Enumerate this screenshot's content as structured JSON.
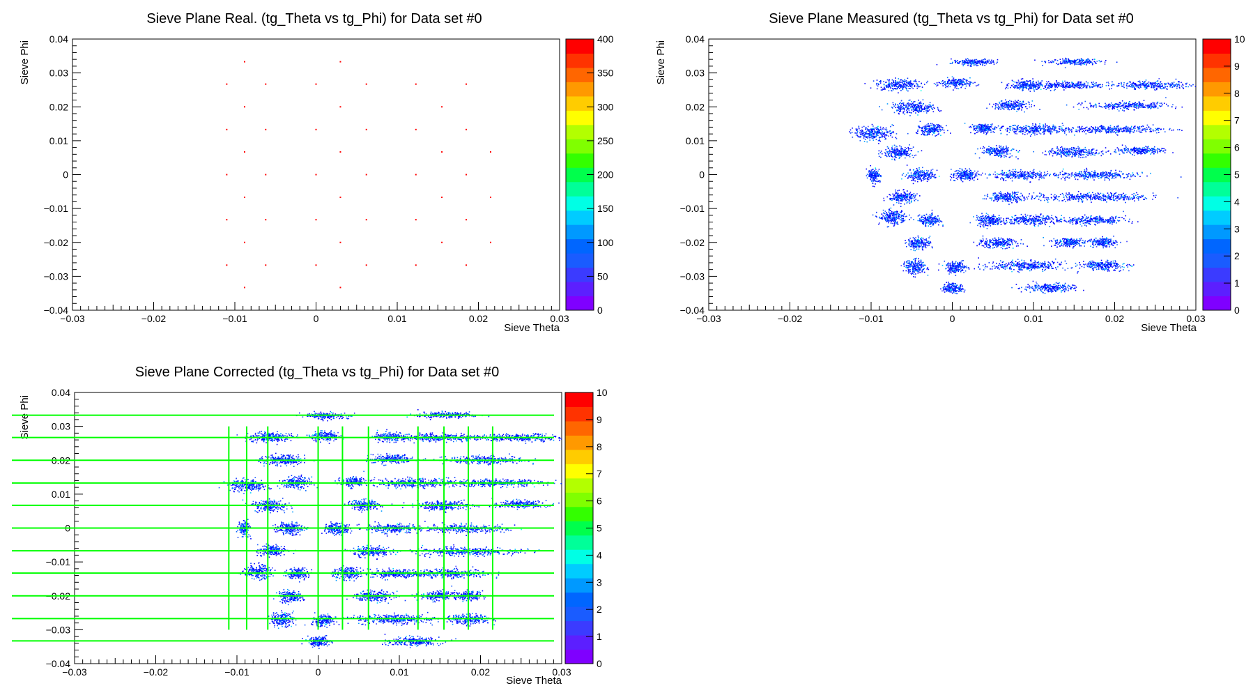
{
  "chart_data": [
    {
      "type": "heatmap",
      "title": "Sieve Plane Real. (tg_Theta vs tg_Phi) for Data set #0",
      "xlabel": "Sieve Theta",
      "ylabel": "Sieve Phi",
      "xlim": [
        -0.03,
        0.03
      ],
      "ylim": [
        -0.04,
        0.04
      ],
      "x_ticks": [
        "−0.03",
        "−0.02",
        "−0.01",
        "0",
        "0.01",
        "0.02",
        "0.03"
      ],
      "y_ticks": [
        "−0.04",
        "−0.03",
        "−0.02",
        "−0.01",
        "0",
        "0.01",
        "0.02",
        "0.03",
        "0.04"
      ],
      "zlim": [
        0,
        400
      ],
      "z_ticks": [
        "0",
        "50",
        "100",
        "150",
        "200",
        "250",
        "300",
        "350",
        "400"
      ],
      "points": [
        [
          -0.0088,
          0.0333
        ],
        [
          0.003,
          0.0333
        ],
        [
          -0.011,
          0.0267
        ],
        [
          -0.0062,
          0.0267
        ],
        [
          0.0,
          0.0267
        ],
        [
          0.0062,
          0.0267
        ],
        [
          0.0123,
          0.0267
        ],
        [
          0.0185,
          0.0267
        ],
        [
          -0.0088,
          0.02
        ],
        [
          0.003,
          0.02
        ],
        [
          0.0155,
          0.02
        ],
        [
          -0.011,
          0.0133
        ],
        [
          -0.0062,
          0.0133
        ],
        [
          0.0,
          0.0133
        ],
        [
          0.0062,
          0.0133
        ],
        [
          0.0123,
          0.0133
        ],
        [
          0.0185,
          0.0133
        ],
        [
          -0.0088,
          0.0067
        ],
        [
          0.003,
          0.0067
        ],
        [
          0.0155,
          0.0067
        ],
        [
          0.0215,
          0.0067
        ],
        [
          -0.011,
          0.0
        ],
        [
          -0.0062,
          0.0
        ],
        [
          0.0,
          0.0
        ],
        [
          0.0062,
          0.0
        ],
        [
          0.0123,
          0.0
        ],
        [
          0.0185,
          0.0
        ],
        [
          -0.0088,
          -0.0067
        ],
        [
          0.003,
          -0.0067
        ],
        [
          0.0155,
          -0.0067
        ],
        [
          0.0215,
          -0.0067
        ],
        [
          -0.011,
          -0.0133
        ],
        [
          -0.0062,
          -0.0133
        ],
        [
          0.0,
          -0.0133
        ],
        [
          0.0062,
          -0.0133
        ],
        [
          0.0123,
          -0.0133
        ],
        [
          0.0185,
          -0.0133
        ],
        [
          -0.0088,
          -0.02
        ],
        [
          0.003,
          -0.02
        ],
        [
          0.0155,
          -0.02
        ],
        [
          0.0215,
          -0.02
        ],
        [
          -0.011,
          -0.0267
        ],
        [
          -0.0062,
          -0.0267
        ],
        [
          0.0,
          -0.0267
        ],
        [
          0.0062,
          -0.0267
        ],
        [
          0.0123,
          -0.0267
        ],
        [
          0.0185,
          -0.0267
        ],
        [
          -0.0088,
          -0.0333
        ],
        [
          0.003,
          -0.0333
        ]
      ]
    },
    {
      "type": "heatmap",
      "title": "Sieve Plane Measured (tg_Theta vs tg_Phi) for Data set #0",
      "xlabel": "Sieve Theta",
      "ylabel": "Sieve Phi",
      "xlim": [
        -0.03,
        0.03
      ],
      "ylim": [
        -0.04,
        0.04
      ],
      "x_ticks": [
        "−0.03",
        "−0.02",
        "−0.01",
        "0",
        "0.01",
        "0.02",
        "0.03"
      ],
      "y_ticks": [
        "−0.04",
        "−0.03",
        "−0.02",
        "−0.01",
        "0",
        "0.01",
        "0.02",
        "0.03",
        "0.04"
      ],
      "zlim": [
        0,
        10
      ],
      "z_ticks": [
        "0",
        "1",
        "2",
        "3",
        "4",
        "5",
        "6",
        "7",
        "8",
        "9",
        "10"
      ],
      "clusters": [
        [
          0.0027,
          0.0333,
          0.0025,
          0.0008
        ],
        [
          0.0148,
          0.0335,
          0.003,
          0.0008
        ],
        [
          -0.0067,
          0.0267,
          0.0025,
          0.0015
        ],
        [
          0.0005,
          0.0272,
          0.0018,
          0.0012
        ],
        [
          0.009,
          0.0265,
          0.0018,
          0.0012
        ],
        [
          0.014,
          0.0265,
          0.0045,
          0.001
        ],
        [
          0.0245,
          0.0265,
          0.0045,
          0.001
        ],
        [
          -0.0048,
          0.02,
          0.0025,
          0.0015
        ],
        [
          0.0072,
          0.0205,
          0.002,
          0.0012
        ],
        [
          0.0215,
          0.0205,
          0.0045,
          0.001
        ],
        [
          -0.0098,
          0.0125,
          0.0022,
          0.0018
        ],
        [
          -0.0028,
          0.0135,
          0.0015,
          0.0015
        ],
        [
          0.0039,
          0.0138,
          0.0013,
          0.0013
        ],
        [
          0.01,
          0.0135,
          0.004,
          0.0012
        ],
        [
          0.02,
          0.0135,
          0.0058,
          0.001
        ],
        [
          -0.0068,
          0.0067,
          0.0018,
          0.0015
        ],
        [
          0.0055,
          0.007,
          0.0018,
          0.0013
        ],
        [
          0.0148,
          0.0068,
          0.003,
          0.0012
        ],
        [
          0.0228,
          0.0072,
          0.0028,
          0.001
        ],
        [
          -0.0097,
          0.0,
          0.0007,
          0.0018
        ],
        [
          -0.004,
          0.0,
          0.0015,
          0.0015
        ],
        [
          0.0015,
          0.0,
          0.0015,
          0.0015
        ],
        [
          0.0085,
          0.0,
          0.003,
          0.0012
        ],
        [
          0.0175,
          0.0,
          0.0045,
          0.0011
        ],
        [
          -0.0062,
          -0.0065,
          0.0015,
          0.0015
        ],
        [
          0.0067,
          -0.0065,
          0.002,
          0.0013
        ],
        [
          0.0175,
          -0.0065,
          0.0065,
          0.0011
        ],
        [
          -0.0074,
          -0.0125,
          0.0015,
          0.0018
        ],
        [
          -0.0028,
          -0.0133,
          0.0012,
          0.0015
        ],
        [
          0.0045,
          -0.0133,
          0.0015,
          0.0015
        ],
        [
          0.0095,
          -0.0133,
          0.003,
          0.0012
        ],
        [
          0.0168,
          -0.0133,
          0.004,
          0.0011
        ],
        [
          -0.0042,
          -0.02,
          0.0013,
          0.0015
        ],
        [
          0.0055,
          -0.02,
          0.0022,
          0.0013
        ],
        [
          0.0145,
          -0.0198,
          0.0018,
          0.0012
        ],
        [
          0.0185,
          -0.0198,
          0.0015,
          0.0012
        ],
        [
          -0.0047,
          -0.027,
          0.0013,
          0.0018
        ],
        [
          0.0003,
          -0.0272,
          0.0012,
          0.0015
        ],
        [
          0.009,
          -0.0267,
          0.0045,
          0.0013
        ],
        [
          0.0185,
          -0.0267,
          0.0025,
          0.0012
        ],
        [
          0.0,
          -0.0333,
          0.0012,
          0.0013
        ],
        [
          0.0118,
          -0.0333,
          0.0028,
          0.0012
        ]
      ]
    },
    {
      "type": "heatmap",
      "title": "Sieve Plane Corrected (tg_Theta vs tg_Phi) for Data set #0",
      "xlabel": "Sieve Theta",
      "ylabel": "Sieve Phi",
      "xlim": [
        -0.03,
        0.03
      ],
      "ylim": [
        -0.04,
        0.04
      ],
      "x_ticks": [
        "−0.03",
        "−0.02",
        "−0.01",
        "0",
        "0.01",
        "0.02",
        "0.03"
      ],
      "y_ticks": [
        "−0.04",
        "−0.03",
        "−0.02",
        "−0.01",
        "0",
        "0.01",
        "0.02",
        "0.03",
        "0.04"
      ],
      "zlim": [
        0,
        10
      ],
      "z_ticks": [
        "0",
        "1",
        "2",
        "3",
        "4",
        "5",
        "6",
        "7",
        "8",
        "9",
        "10"
      ],
      "clusters": [
        [
          0.001,
          0.0333,
          0.0025,
          0.0008
        ],
        [
          0.0155,
          0.0335,
          0.003,
          0.0008
        ],
        [
          -0.006,
          0.027,
          0.0025,
          0.0013
        ],
        [
          0.0008,
          0.0272,
          0.0015,
          0.0012
        ],
        [
          0.0088,
          0.027,
          0.0018,
          0.0012
        ],
        [
          0.015,
          0.0268,
          0.0045,
          0.001
        ],
        [
          0.025,
          0.0268,
          0.0045,
          0.001
        ],
        [
          -0.0045,
          0.0202,
          0.0025,
          0.0013
        ],
        [
          0.009,
          0.0205,
          0.0022,
          0.0012
        ],
        [
          0.0205,
          0.0202,
          0.0045,
          0.001
        ],
        [
          -0.0088,
          0.0128,
          0.0022,
          0.0015
        ],
        [
          -0.0028,
          0.0135,
          0.0015,
          0.0015
        ],
        [
          0.0042,
          0.0138,
          0.0013,
          0.0013
        ],
        [
          0.0115,
          0.0135,
          0.004,
          0.0012
        ],
        [
          0.0215,
          0.0135,
          0.0058,
          0.001
        ],
        [
          -0.006,
          0.0067,
          0.0018,
          0.0015
        ],
        [
          0.0055,
          0.007,
          0.0018,
          0.0013
        ],
        [
          0.0155,
          0.0068,
          0.003,
          0.0012
        ],
        [
          0.025,
          0.0072,
          0.0028,
          0.001
        ],
        [
          -0.0092,
          0.0,
          0.0006,
          0.0018
        ],
        [
          -0.0036,
          0.0,
          0.0015,
          0.0015
        ],
        [
          0.0022,
          0.0,
          0.0015,
          0.0015
        ],
        [
          0.009,
          0.0,
          0.003,
          0.0012
        ],
        [
          0.018,
          0.0,
          0.0045,
          0.0011
        ],
        [
          -0.0058,
          -0.0065,
          0.0015,
          0.0015
        ],
        [
          0.0065,
          -0.0068,
          0.002,
          0.0013
        ],
        [
          0.018,
          -0.0068,
          0.006,
          0.0011
        ],
        [
          -0.0075,
          -0.0128,
          0.0015,
          0.0018
        ],
        [
          -0.0025,
          -0.0133,
          0.0012,
          0.0015
        ],
        [
          0.0035,
          -0.0133,
          0.0015,
          0.0015
        ],
        [
          0.0095,
          -0.0133,
          0.003,
          0.0012
        ],
        [
          0.016,
          -0.0133,
          0.0045,
          0.0011
        ],
        [
          -0.0035,
          -0.02,
          0.0013,
          0.0015
        ],
        [
          0.0068,
          -0.02,
          0.0022,
          0.0013
        ],
        [
          0.0145,
          -0.0198,
          0.0018,
          0.0012
        ],
        [
          0.0185,
          -0.0198,
          0.0015,
          0.0012
        ],
        [
          -0.0045,
          -0.0267,
          0.0013,
          0.0018
        ],
        [
          0.0005,
          -0.0272,
          0.0012,
          0.0015
        ],
        [
          0.0095,
          -0.0267,
          0.0045,
          0.0013
        ],
        [
          0.0185,
          -0.0267,
          0.0025,
          0.0012
        ],
        [
          0.0,
          -0.0333,
          0.0012,
          0.0013
        ],
        [
          0.0118,
          -0.0333,
          0.0028,
          0.0012
        ]
      ],
      "reference_lines": {
        "color": "#00ff00",
        "phi": [
          0.0333,
          0.0267,
          0.02,
          0.0133,
          0.0067,
          0.0,
          -0.0067,
          -0.0133,
          -0.02,
          -0.0267,
          -0.0333
        ],
        "theta": [
          -0.011,
          -0.0088,
          -0.0062,
          0.0,
          0.003,
          0.0062,
          0.0123,
          0.0155,
          0.0185,
          0.0215
        ],
        "theta_range": [
          -0.03,
          0.03
        ]
      }
    }
  ],
  "colors": {
    "palette": [
      "#7f00ff",
      "#5c1fff",
      "#3b3bff",
      "#1a5cff",
      "#0066ff",
      "#0099ff",
      "#00ccff",
      "#00ffe5",
      "#00ff99",
      "#00ff4c",
      "#33ff00",
      "#80ff00",
      "#b3ff00",
      "#ffff00",
      "#ffcc00",
      "#ff9900",
      "#ff6600",
      "#ff3300",
      "#ff0000"
    ],
    "grid_lines": "#00ff00"
  }
}
